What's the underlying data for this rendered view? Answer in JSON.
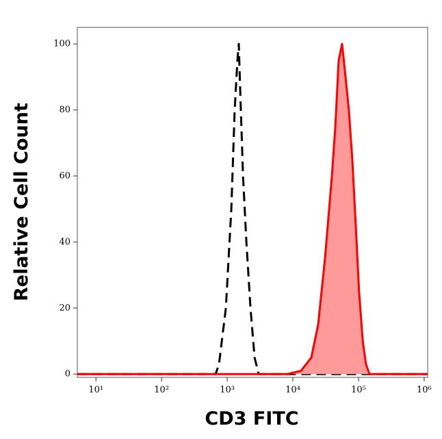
{
  "chart_data": {
    "type": "histogram-overlay",
    "xlabel": "CD3 FITC",
    "ylabel": "Relative Cell Count",
    "xscale": "log",
    "xlim": [
      5.2,
      1130000
    ],
    "ylim": [
      -1,
      105
    ],
    "xticks": [
      {
        "value": 10,
        "label": "10¹"
      },
      {
        "value": 100,
        "label": "10²"
      },
      {
        "value": 1000,
        "label": "10³"
      },
      {
        "value": 10000,
        "label": "10⁴"
      },
      {
        "value": 100000,
        "label": "10⁵"
      },
      {
        "value": 1000000,
        "label": "10⁶"
      }
    ],
    "yticks": [
      0,
      20,
      40,
      60,
      80,
      100
    ],
    "series": [
      {
        "color": "#000000",
        "dashed": true,
        "filled": false,
        "x": [
          5.2,
          665,
          750,
          953,
          1155,
          1300,
          1430,
          1500,
          1580,
          1740,
          1960,
          2260,
          2610,
          3010,
          1130000
        ],
        "values": [
          0,
          0,
          3,
          20,
          50,
          80,
          95,
          100,
          85,
          60,
          40,
          20,
          5,
          0,
          0
        ]
      },
      {
        "color": "#ff0000",
        "dashed": false,
        "filled": true,
        "fill": "#ff9a9a",
        "x": [
          5.2,
          8260,
          13300,
          19100,
          24300,
          30900,
          39300,
          44300,
          49900,
          56200,
          63400,
          71400,
          80500,
          90800,
          102000,
          116000,
          130000,
          147000,
          1130000
        ],
        "values": [
          0,
          0,
          1,
          5,
          15,
          35,
          60,
          75,
          95,
          100,
          90,
          80,
          65,
          45,
          25,
          10,
          3,
          0,
          0
        ]
      }
    ]
  }
}
